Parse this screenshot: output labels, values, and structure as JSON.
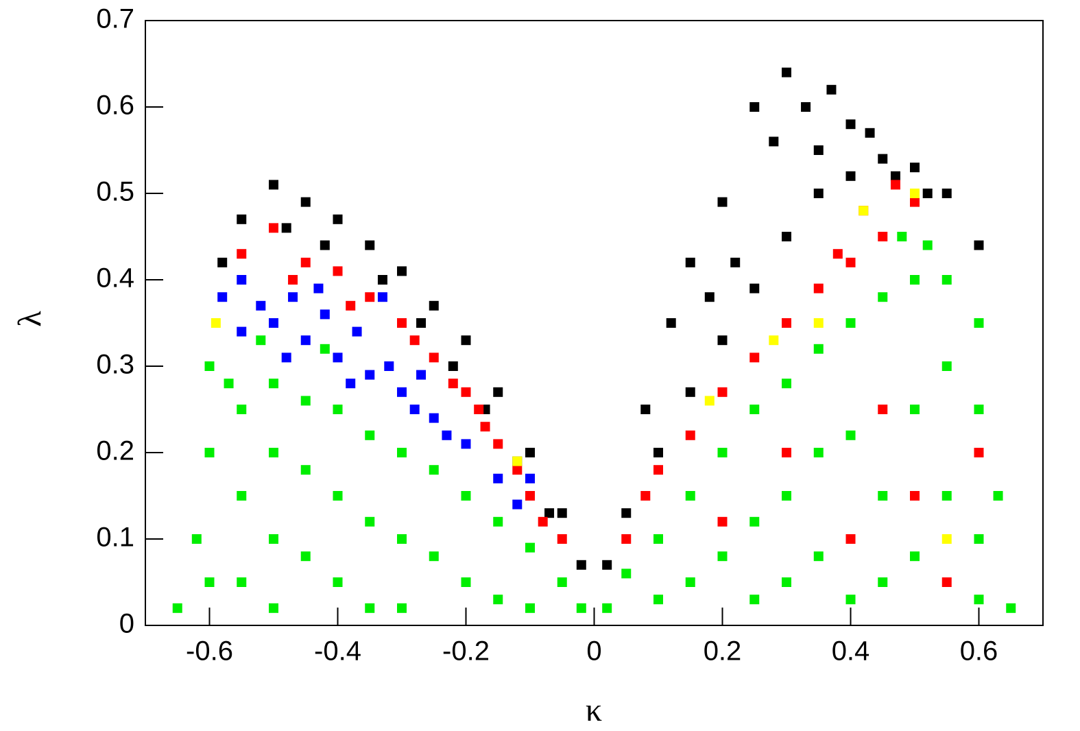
{
  "chart_data": {
    "type": "scatter",
    "x_label": "κ",
    "y_label": "λ",
    "xlim": [
      -0.7,
      0.7
    ],
    "ylim": [
      0,
      0.7
    ],
    "xticks": [
      -0.6,
      -0.4,
      -0.2,
      0,
      0.2,
      0.4,
      0.6
    ],
    "yticks": [
      0,
      0.1,
      0.2,
      0.3,
      0.4,
      0.5,
      0.6,
      0.7
    ],
    "series": [
      {
        "color": "#000000",
        "x": [
          -0.5,
          -0.55,
          -0.45,
          -0.4,
          -0.35,
          -0.3,
          -0.25,
          -0.2,
          -0.15,
          -0.1,
          -0.05,
          -0.02,
          -0.48,
          -0.42,
          -0.33,
          -0.27,
          -0.22,
          -0.17,
          -0.12,
          -0.07,
          -0.58,
          0.02,
          0.05,
          0.1,
          0.15,
          0.2,
          0.25,
          0.3,
          0.35,
          0.4,
          0.45,
          0.5,
          0.55,
          0.6,
          0.3,
          0.37,
          0.25,
          0.33,
          0.4,
          0.28,
          0.2,
          0.15,
          0.12,
          0.22,
          0.43,
          0.52,
          0.08,
          0.18,
          0.35,
          0.47
        ],
        "y": [
          0.51,
          0.47,
          0.49,
          0.47,
          0.44,
          0.41,
          0.37,
          0.33,
          0.27,
          0.2,
          0.13,
          0.07,
          0.46,
          0.44,
          0.4,
          0.35,
          0.3,
          0.25,
          0.19,
          0.13,
          0.42,
          0.07,
          0.13,
          0.2,
          0.27,
          0.33,
          0.39,
          0.45,
          0.5,
          0.52,
          0.54,
          0.53,
          0.5,
          0.44,
          0.64,
          0.62,
          0.6,
          0.6,
          0.58,
          0.56,
          0.49,
          0.42,
          0.35,
          0.42,
          0.57,
          0.5,
          0.25,
          0.38,
          0.55,
          0.52
        ]
      },
      {
        "color": "#0000ff",
        "x": [
          -0.58,
          -0.55,
          -0.52,
          -0.5,
          -0.47,
          -0.45,
          -0.42,
          -0.4,
          -0.37,
          -0.35,
          -0.32,
          -0.3,
          -0.28,
          -0.25,
          -0.23,
          -0.2,
          -0.55,
          -0.48,
          -0.38,
          -0.33,
          -0.43,
          -0.27,
          -0.15,
          -0.12,
          -0.1
        ],
        "y": [
          0.38,
          0.4,
          0.37,
          0.35,
          0.38,
          0.33,
          0.36,
          0.31,
          0.34,
          0.29,
          0.3,
          0.27,
          0.25,
          0.24,
          0.22,
          0.21,
          0.34,
          0.31,
          0.28,
          0.38,
          0.39,
          0.29,
          0.17,
          0.14,
          0.17
        ]
      },
      {
        "color": "#ff0000",
        "x": [
          -0.55,
          -0.5,
          -0.45,
          -0.4,
          -0.35,
          -0.3,
          -0.25,
          -0.22,
          -0.2,
          -0.17,
          -0.15,
          -0.12,
          -0.1,
          -0.08,
          -0.05,
          -0.47,
          -0.38,
          -0.28,
          -0.18,
          0.05,
          0.08,
          0.1,
          0.15,
          0.2,
          0.25,
          0.3,
          0.35,
          0.4,
          0.45,
          0.5,
          0.38,
          0.42,
          0.47,
          0.3,
          0.4,
          0.5,
          0.55,
          0.2,
          0.45,
          0.6
        ],
        "y": [
          0.43,
          0.46,
          0.42,
          0.41,
          0.38,
          0.35,
          0.31,
          0.28,
          0.27,
          0.23,
          0.21,
          0.18,
          0.15,
          0.12,
          0.1,
          0.4,
          0.37,
          0.33,
          0.25,
          0.1,
          0.15,
          0.18,
          0.22,
          0.27,
          0.31,
          0.35,
          0.39,
          0.42,
          0.45,
          0.49,
          0.43,
          0.48,
          0.51,
          0.2,
          0.1,
          0.15,
          0.05,
          0.12,
          0.25,
          0.2
        ]
      },
      {
        "color": "#00ee00",
        "x": [
          -0.65,
          -0.62,
          -0.6,
          -0.6,
          -0.57,
          -0.55,
          -0.55,
          -0.55,
          -0.5,
          -0.5,
          -0.5,
          -0.5,
          -0.45,
          -0.45,
          -0.45,
          -0.4,
          -0.4,
          -0.4,
          -0.35,
          -0.35,
          -0.35,
          -0.3,
          -0.3,
          -0.25,
          -0.25,
          -0.2,
          -0.2,
          -0.15,
          -0.15,
          -0.1,
          -0.05,
          -0.02,
          -0.6,
          -0.3,
          -0.1,
          -0.42,
          -0.52,
          0.02,
          0.05,
          0.1,
          0.1,
          0.15,
          0.15,
          0.2,
          0.2,
          0.25,
          0.25,
          0.25,
          0.3,
          0.3,
          0.3,
          0.35,
          0.35,
          0.35,
          0.4,
          0.4,
          0.4,
          0.45,
          0.45,
          0.45,
          0.5,
          0.5,
          0.5,
          0.55,
          0.55,
          0.55,
          0.6,
          0.6,
          0.6,
          0.63,
          0.65,
          0.48,
          0.52,
          0.6
        ],
        "y": [
          0.02,
          0.1,
          0.2,
          0.3,
          0.28,
          0.25,
          0.15,
          0.05,
          0.28,
          0.2,
          0.1,
          0.02,
          0.26,
          0.18,
          0.08,
          0.25,
          0.15,
          0.05,
          0.22,
          0.12,
          0.02,
          0.2,
          0.1,
          0.18,
          0.08,
          0.15,
          0.05,
          0.12,
          0.03,
          0.09,
          0.05,
          0.02,
          0.05,
          0.02,
          0.02,
          0.32,
          0.33,
          0.02,
          0.06,
          0.1,
          0.03,
          0.15,
          0.05,
          0.2,
          0.08,
          0.25,
          0.12,
          0.03,
          0.28,
          0.15,
          0.05,
          0.32,
          0.2,
          0.08,
          0.35,
          0.22,
          0.03,
          0.38,
          0.15,
          0.05,
          0.4,
          0.25,
          0.08,
          0.4,
          0.3,
          0.15,
          0.35,
          0.25,
          0.1,
          0.15,
          0.02,
          0.45,
          0.44,
          0.03
        ]
      },
      {
        "color": "#ffff00",
        "x": [
          -0.59,
          -0.12,
          0.18,
          0.28,
          0.42,
          0.5,
          0.35,
          0.55
        ],
        "y": [
          0.35,
          0.19,
          0.26,
          0.33,
          0.48,
          0.5,
          0.35,
          0.1
        ]
      }
    ]
  }
}
